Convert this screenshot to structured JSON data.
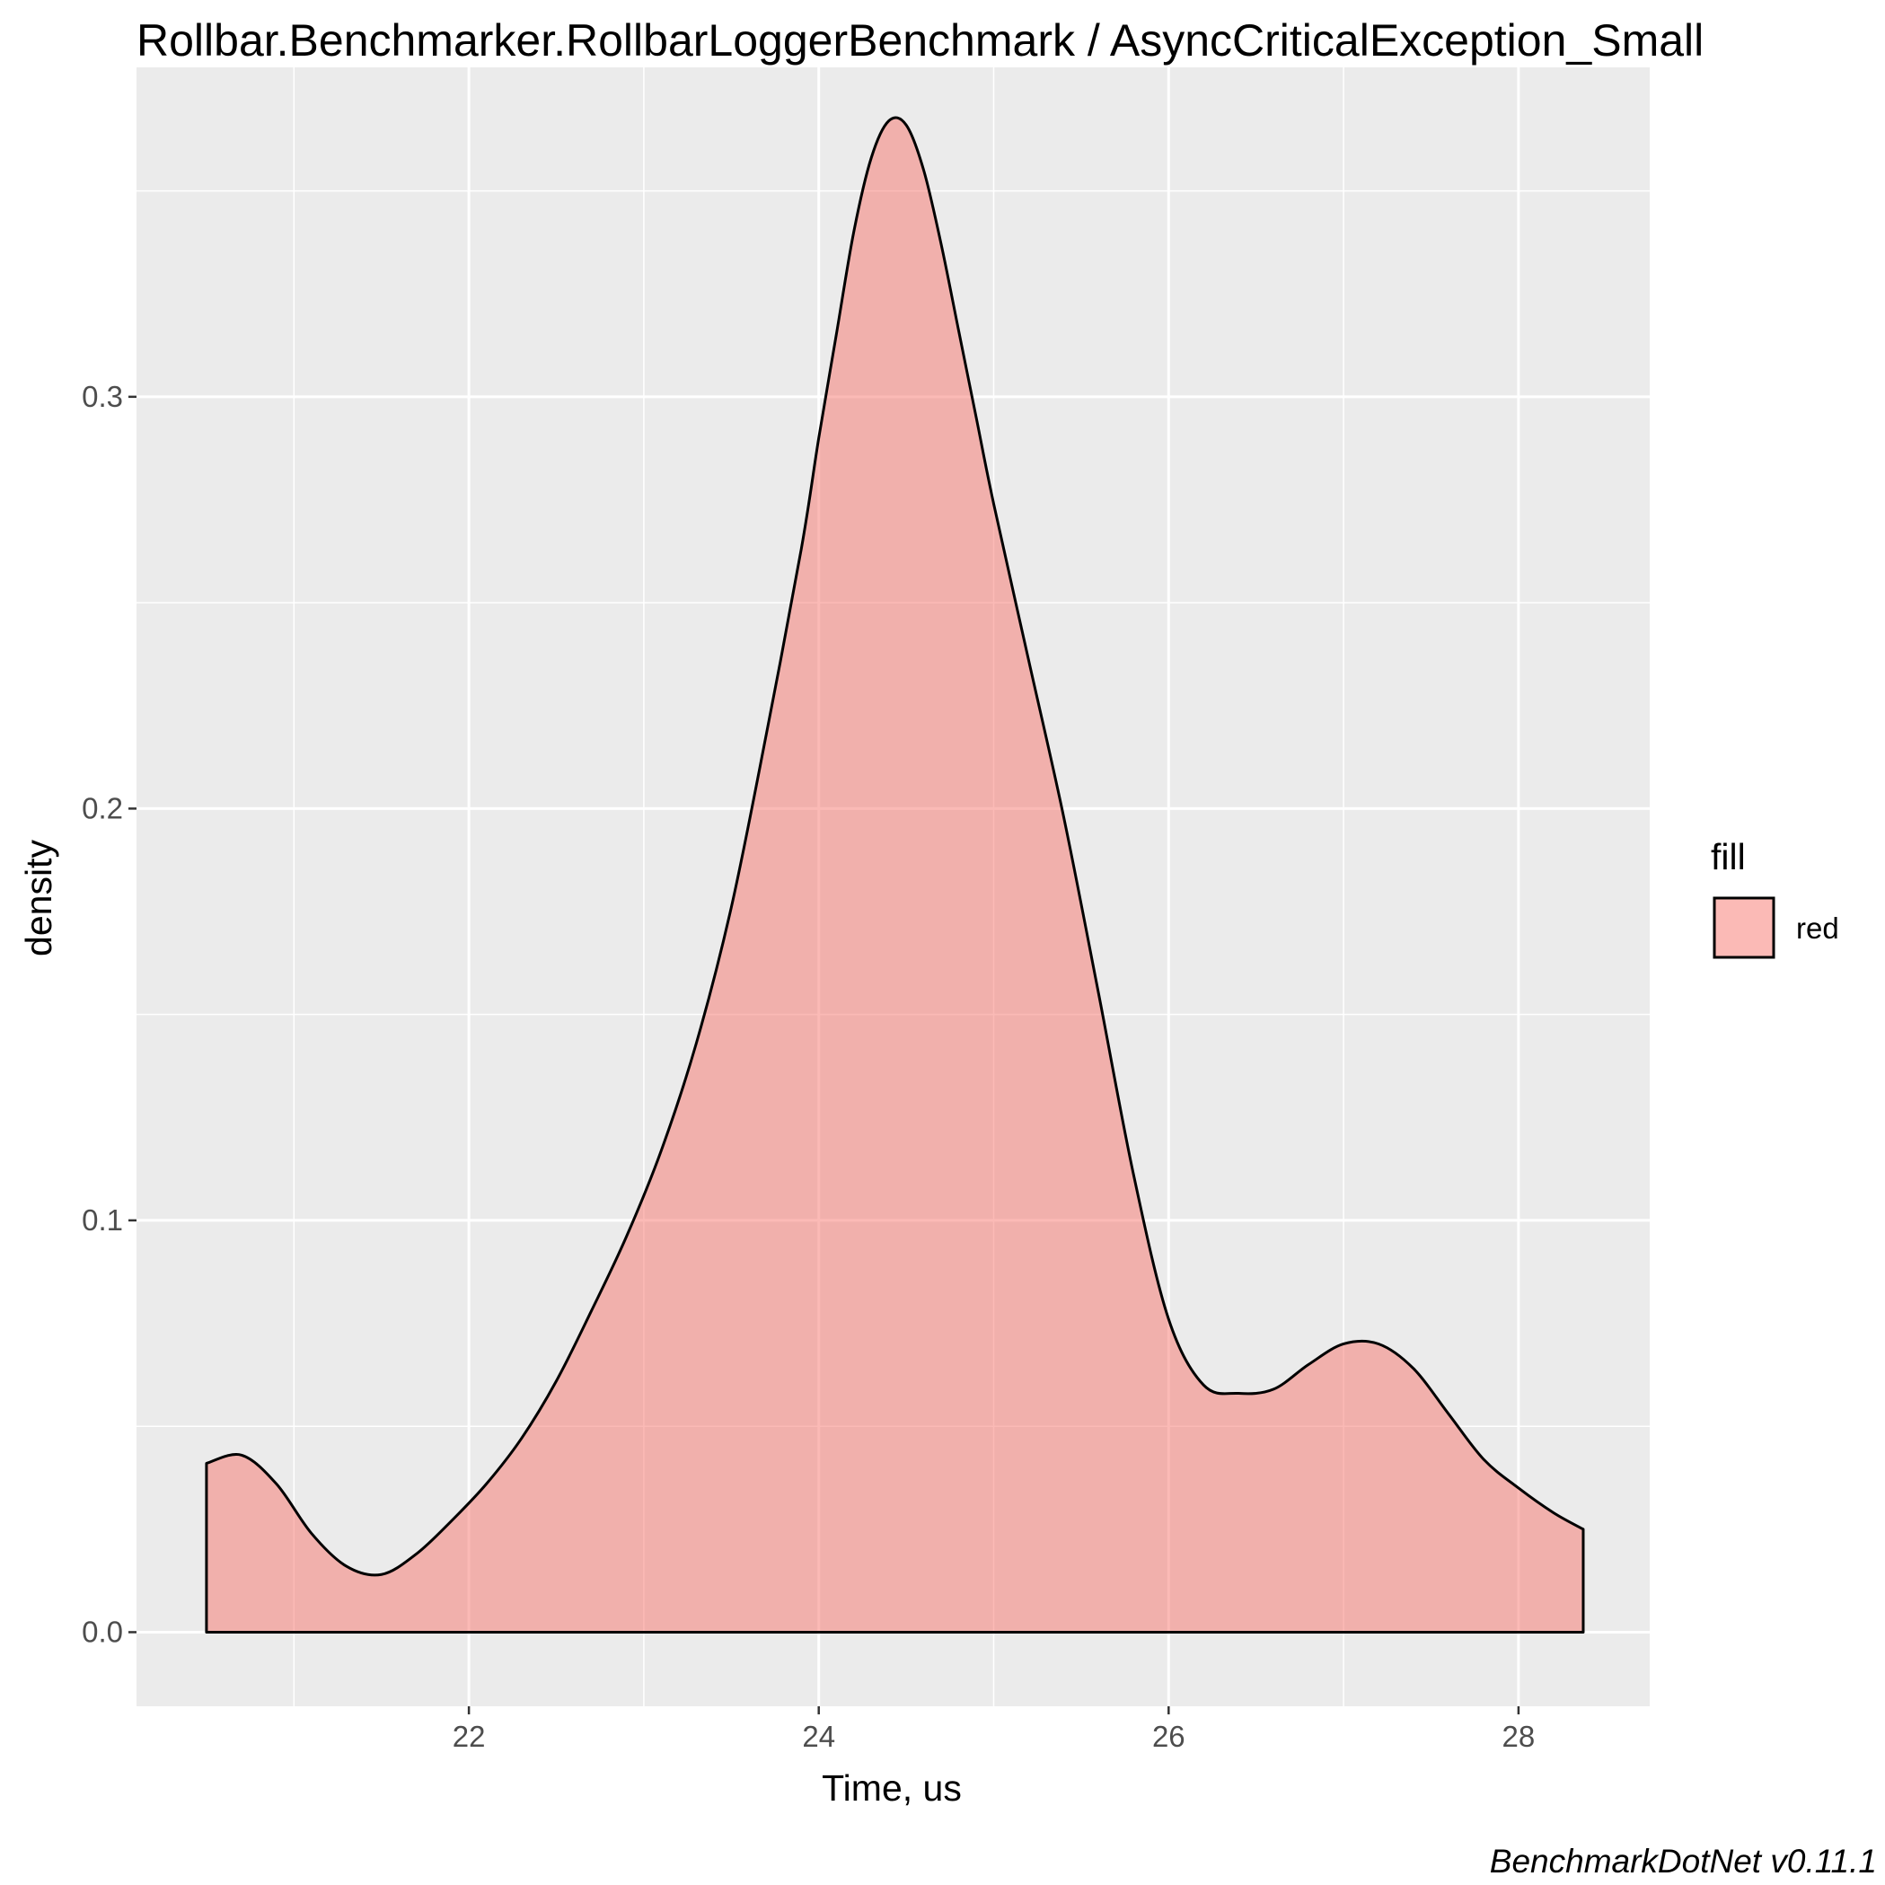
{
  "chart_data": {
    "type": "area",
    "title": "Rollbar.Benchmarker.RollbarLoggerBenchmark / AsyncCriticalException_Small",
    "xlabel": "Time, us",
    "ylabel": "density",
    "xlim": [
      20.1,
      28.75
    ],
    "ylim": [
      -0.018,
      0.38
    ],
    "x_ticks": [
      22,
      24,
      26,
      28
    ],
    "x_tick_labels": [
      "22",
      "24",
      "26",
      "28"
    ],
    "y_ticks": [
      0.0,
      0.1,
      0.2,
      0.3
    ],
    "y_tick_labels": [
      "0.0",
      "0.1",
      "0.2",
      "0.3"
    ],
    "grid": true,
    "legend": {
      "title": "fill",
      "placement": "right",
      "entries": [
        {
          "label": "red",
          "color": "#F8766D"
        }
      ]
    },
    "caption": "BenchmarkDotNet v0.11.1",
    "series": [
      {
        "fill_color": "#F8766D",
        "fill_opacity": 0.5,
        "line_color": "#000000",
        "x": [
          20.5,
          20.7,
          20.9,
          21.1,
          21.3,
          21.5,
          21.7,
          21.9,
          22.1,
          22.3,
          22.5,
          22.7,
          22.9,
          23.1,
          23.3,
          23.5,
          23.7,
          23.9,
          24.0,
          24.1,
          24.2,
          24.3,
          24.4,
          24.5,
          24.6,
          24.7,
          24.8,
          24.9,
          25.0,
          25.2,
          25.4,
          25.6,
          25.8,
          26.0,
          26.2,
          26.4,
          26.6,
          26.8,
          27.0,
          27.2,
          27.4,
          27.6,
          27.8,
          28.0,
          28.2,
          28.37
        ],
        "y": [
          0.041,
          0.043,
          0.036,
          0.024,
          0.016,
          0.014,
          0.019,
          0.027,
          0.036,
          0.047,
          0.061,
          0.078,
          0.096,
          0.117,
          0.143,
          0.176,
          0.218,
          0.263,
          0.29,
          0.315,
          0.34,
          0.358,
          0.367,
          0.366,
          0.355,
          0.337,
          0.316,
          0.295,
          0.274,
          0.236,
          0.198,
          0.155,
          0.111,
          0.076,
          0.06,
          0.058,
          0.059,
          0.065,
          0.07,
          0.07,
          0.064,
          0.053,
          0.042,
          0.035,
          0.029,
          0.025
        ]
      }
    ]
  }
}
